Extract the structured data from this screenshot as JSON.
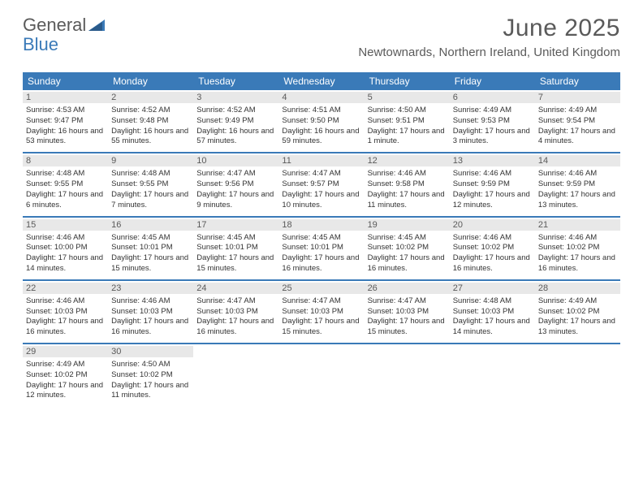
{
  "logo": {
    "text1": "General",
    "text2": "Blue",
    "triangle_color": "#3a7ab8"
  },
  "title": "June 2025",
  "location": "Newtownards, Northern Ireland, United Kingdom",
  "colors": {
    "header_bg": "#3a7ab8",
    "header_text": "#ffffff",
    "daynum_bg": "#e8e8e8",
    "text": "#333333",
    "title_color": "#5a5a5a"
  },
  "day_names": [
    "Sunday",
    "Monday",
    "Tuesday",
    "Wednesday",
    "Thursday",
    "Friday",
    "Saturday"
  ],
  "days": [
    {
      "n": "1",
      "sr": "4:53 AM",
      "ss": "9:47 PM",
      "dl": "16 hours and 53 minutes."
    },
    {
      "n": "2",
      "sr": "4:52 AM",
      "ss": "9:48 PM",
      "dl": "16 hours and 55 minutes."
    },
    {
      "n": "3",
      "sr": "4:52 AM",
      "ss": "9:49 PM",
      "dl": "16 hours and 57 minutes."
    },
    {
      "n": "4",
      "sr": "4:51 AM",
      "ss": "9:50 PM",
      "dl": "16 hours and 59 minutes."
    },
    {
      "n": "5",
      "sr": "4:50 AM",
      "ss": "9:51 PM",
      "dl": "17 hours and 1 minute."
    },
    {
      "n": "6",
      "sr": "4:49 AM",
      "ss": "9:53 PM",
      "dl": "17 hours and 3 minutes."
    },
    {
      "n": "7",
      "sr": "4:49 AM",
      "ss": "9:54 PM",
      "dl": "17 hours and 4 minutes."
    },
    {
      "n": "8",
      "sr": "4:48 AM",
      "ss": "9:55 PM",
      "dl": "17 hours and 6 minutes."
    },
    {
      "n": "9",
      "sr": "4:48 AM",
      "ss": "9:55 PM",
      "dl": "17 hours and 7 minutes."
    },
    {
      "n": "10",
      "sr": "4:47 AM",
      "ss": "9:56 PM",
      "dl": "17 hours and 9 minutes."
    },
    {
      "n": "11",
      "sr": "4:47 AM",
      "ss": "9:57 PM",
      "dl": "17 hours and 10 minutes."
    },
    {
      "n": "12",
      "sr": "4:46 AM",
      "ss": "9:58 PM",
      "dl": "17 hours and 11 minutes."
    },
    {
      "n": "13",
      "sr": "4:46 AM",
      "ss": "9:59 PM",
      "dl": "17 hours and 12 minutes."
    },
    {
      "n": "14",
      "sr": "4:46 AM",
      "ss": "9:59 PM",
      "dl": "17 hours and 13 minutes."
    },
    {
      "n": "15",
      "sr": "4:46 AM",
      "ss": "10:00 PM",
      "dl": "17 hours and 14 minutes."
    },
    {
      "n": "16",
      "sr": "4:45 AM",
      "ss": "10:01 PM",
      "dl": "17 hours and 15 minutes."
    },
    {
      "n": "17",
      "sr": "4:45 AM",
      "ss": "10:01 PM",
      "dl": "17 hours and 15 minutes."
    },
    {
      "n": "18",
      "sr": "4:45 AM",
      "ss": "10:01 PM",
      "dl": "17 hours and 16 minutes."
    },
    {
      "n": "19",
      "sr": "4:45 AM",
      "ss": "10:02 PM",
      "dl": "17 hours and 16 minutes."
    },
    {
      "n": "20",
      "sr": "4:46 AM",
      "ss": "10:02 PM",
      "dl": "17 hours and 16 minutes."
    },
    {
      "n": "21",
      "sr": "4:46 AM",
      "ss": "10:02 PM",
      "dl": "17 hours and 16 minutes."
    },
    {
      "n": "22",
      "sr": "4:46 AM",
      "ss": "10:03 PM",
      "dl": "17 hours and 16 minutes."
    },
    {
      "n": "23",
      "sr": "4:46 AM",
      "ss": "10:03 PM",
      "dl": "17 hours and 16 minutes."
    },
    {
      "n": "24",
      "sr": "4:47 AM",
      "ss": "10:03 PM",
      "dl": "17 hours and 16 minutes."
    },
    {
      "n": "25",
      "sr": "4:47 AM",
      "ss": "10:03 PM",
      "dl": "17 hours and 15 minutes."
    },
    {
      "n": "26",
      "sr": "4:47 AM",
      "ss": "10:03 PM",
      "dl": "17 hours and 15 minutes."
    },
    {
      "n": "27",
      "sr": "4:48 AM",
      "ss": "10:03 PM",
      "dl": "17 hours and 14 minutes."
    },
    {
      "n": "28",
      "sr": "4:49 AM",
      "ss": "10:02 PM",
      "dl": "17 hours and 13 minutes."
    },
    {
      "n": "29",
      "sr": "4:49 AM",
      "ss": "10:02 PM",
      "dl": "17 hours and 12 minutes."
    },
    {
      "n": "30",
      "sr": "4:50 AM",
      "ss": "10:02 PM",
      "dl": "17 hours and 11 minutes."
    }
  ],
  "labels": {
    "sunrise": "Sunrise: ",
    "sunset": "Sunset: ",
    "daylight": "Daylight: "
  }
}
